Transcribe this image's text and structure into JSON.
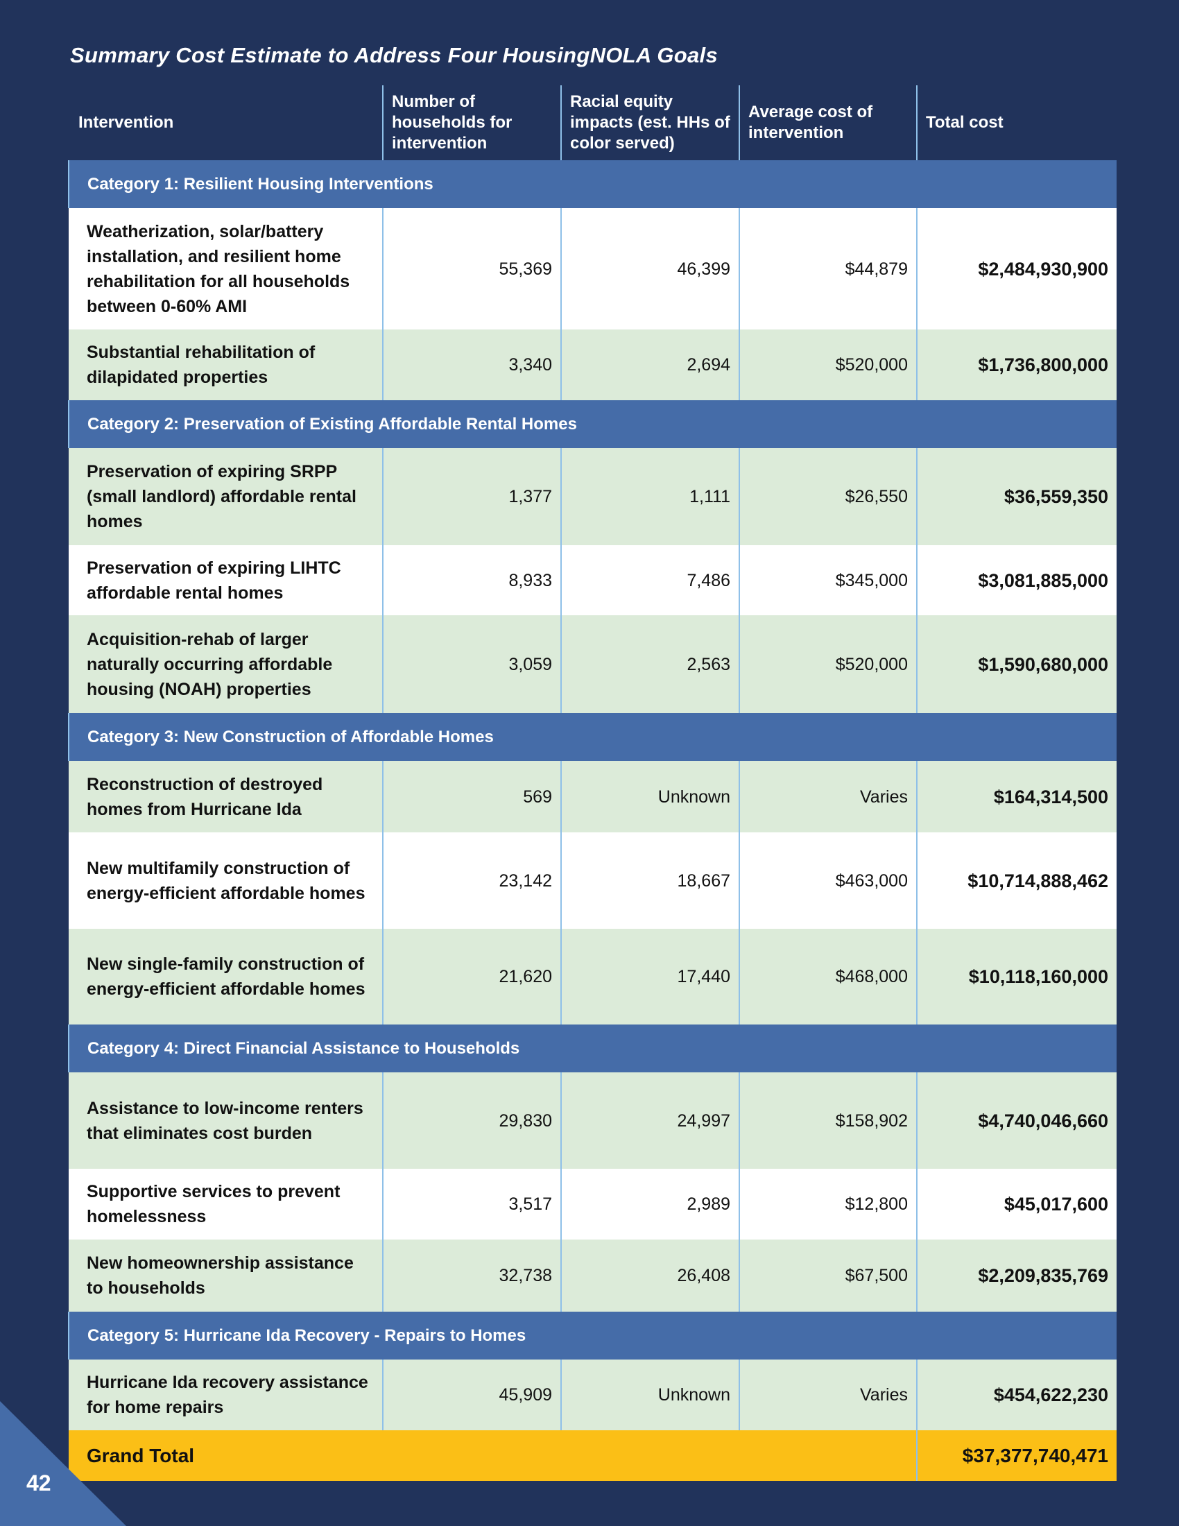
{
  "title": "Summary Cost Estimate to Address Four HousingNOLA Goals",
  "headers": [
    "Intervention",
    "Number of households for intervention",
    "Racial equity impacts (est. HHs of color served)",
    "Average cost of intervention",
    "Total cost"
  ],
  "categories": [
    {
      "label": "Category 1: Resilient Housing Interventions",
      "rows": [
        {
          "name": "Weatherization, solar/battery installation, and resilient home rehabilitation for all households between 0-60% AMI",
          "households": "55,369",
          "equity": "46,399",
          "avg": "$44,879",
          "total": "$2,484,930,900",
          "shade": "white",
          "h": 175
        },
        {
          "name": "Substantial rehabilitation of dilapidated properties",
          "households": "3,340",
          "equity": "2,694",
          "avg": "$520,000",
          "total": "$1,736,800,000",
          "shade": "green",
          "h": 102
        }
      ]
    },
    {
      "label": "Category 2: Preservation of Existing Affordable Rental Homes",
      "rows": [
        {
          "name": "Preservation of expiring SRPP (small landlord) affordable rental homes",
          "households": "1,377",
          "equity": "1,111",
          "avg": "$26,550",
          "total": "$36,559,350",
          "shade": "green",
          "h": 140
        },
        {
          "name": "Preservation of expiring LIHTC affordable rental homes",
          "households": "8,933",
          "equity": "7,486",
          "avg": "$345,000",
          "total": "$3,081,885,000",
          "shade": "white",
          "h": 101
        },
        {
          "name": "Acquisition-rehab of larger naturally occurring affordable housing (NOAH) properties",
          "households": "3,059",
          "equity": "2,563",
          "avg": "$520,000",
          "total": "$1,590,680,000",
          "shade": "green",
          "h": 141
        }
      ]
    },
    {
      "label": "Category 3: New Construction of Affordable Homes",
      "rows": [
        {
          "name": "Reconstruction of destroyed homes from Hurricane Ida",
          "households": "569",
          "equity": "Unknown",
          "avg": "Varies",
          "total": "$164,314,500",
          "shade": "green",
          "h": 103
        },
        {
          "name": "New multifamily construction of energy-efficient affordable homes",
          "households": "23,142",
          "equity": "18,667",
          "avg": "$463,000",
          "total": "$10,714,888,462",
          "shade": "white",
          "h": 139
        },
        {
          "name": "New single-family construction of energy-efficient affordable homes",
          "households": "21,620",
          "equity": "17,440",
          "avg": "$468,000",
          "total": "$10,118,160,000",
          "shade": "green",
          "h": 138
        }
      ]
    },
    {
      "label": "Category 4: Direct Financial Assistance to Households",
      "rows": [
        {
          "name": "Assistance to low-income renters that eliminates cost burden",
          "households": "29,830",
          "equity": "24,997",
          "avg": "$158,902",
          "total": "$4,740,046,660",
          "shade": "green",
          "h": 139
        },
        {
          "name": "Supportive services to prevent homelessness",
          "households": "3,517",
          "equity": "2,989",
          "avg": "$12,800",
          "total": "$45,017,600",
          "shade": "white",
          "h": 102
        },
        {
          "name": "New homeownership assistance to households",
          "households": "32,738",
          "equity": "26,408",
          "avg": "$67,500",
          "total": "$2,209,835,769",
          "shade": "green",
          "h": 104
        }
      ]
    },
    {
      "label": "Category 5: Hurricane Ida Recovery - Repairs to Homes",
      "rows": [
        {
          "name": "Hurricane Ida recovery assistance for home repairs",
          "households": "45,909",
          "equity": "Unknown",
          "avg": "Varies",
          "total": "$454,622,230",
          "shade": "green",
          "h": 102
        }
      ]
    }
  ],
  "grand_total": {
    "label": "Grand Total",
    "value": "$37,377,740,471"
  },
  "page_number": "42",
  "colors": {
    "background": "#21335b",
    "category": "#456ca8",
    "row_green": "#dcebd9",
    "grand_total": "#fbbf16"
  }
}
